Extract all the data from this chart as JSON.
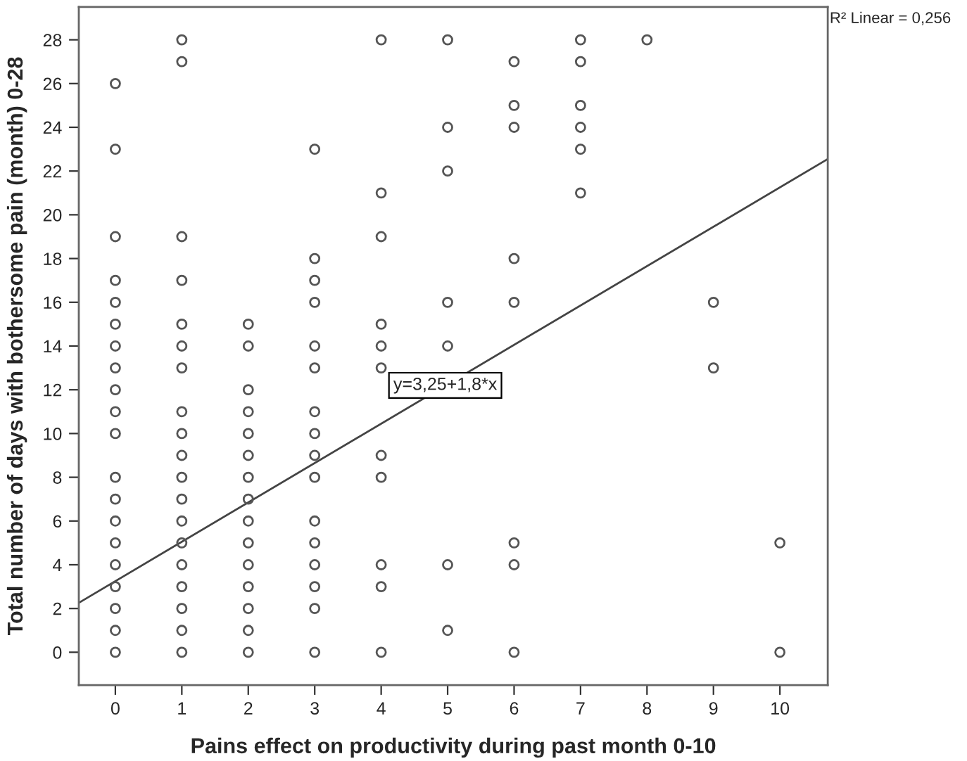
{
  "chart_data": {
    "type": "scatter",
    "xlabel": "Pains effect on productivity during past month 0-10",
    "ylabel": "Total number of days with bothersome pain (month) 0-28",
    "grid": false,
    "legend": false,
    "xlim": [
      -0.55,
      10.72
    ],
    "ylim": [
      -1.5,
      29.5
    ],
    "xticks": [
      0,
      1,
      2,
      3,
      4,
      5,
      6,
      7,
      8,
      9,
      10
    ],
    "yticks": [
      0,
      2,
      4,
      6,
      8,
      10,
      12,
      14,
      16,
      18,
      20,
      22,
      24,
      26,
      28
    ],
    "series": [
      {
        "color": "#555555",
        "marker": "circle",
        "x": [
          0,
          0,
          0,
          0,
          0,
          0,
          0,
          0,
          0,
          0,
          0,
          0,
          0,
          0,
          0,
          0,
          0,
          0,
          0,
          0,
          1,
          1,
          1,
          1,
          1,
          1,
          1,
          1,
          1,
          1,
          1,
          1,
          1,
          1,
          1,
          1,
          1,
          1,
          1,
          2,
          2,
          2,
          2,
          2,
          2,
          2,
          2,
          2,
          2,
          2,
          2,
          2,
          2,
          2,
          3,
          3,
          3,
          3,
          3,
          3,
          3,
          3,
          3,
          3,
          3,
          3,
          3,
          3,
          3,
          3,
          4,
          4,
          4,
          4,
          4,
          4,
          4,
          4,
          4,
          4,
          4,
          5,
          5,
          5,
          5,
          5,
          5,
          5,
          6,
          6,
          6,
          6,
          6,
          6,
          6,
          6,
          7,
          7,
          7,
          7,
          7,
          7,
          8,
          9,
          9,
          10,
          10
        ],
        "values": [
          26,
          23,
          19,
          17,
          16,
          15,
          14,
          13,
          12,
          11,
          10,
          8,
          7,
          6,
          5,
          4,
          3,
          2,
          1,
          0,
          28,
          27,
          19,
          17,
          15,
          14,
          13,
          11,
          10,
          9,
          8,
          7,
          6,
          5,
          4,
          3,
          2,
          1,
          0,
          15,
          14,
          12,
          11,
          10,
          9,
          8,
          7,
          6,
          5,
          4,
          3,
          2,
          1,
          0,
          23,
          18,
          17,
          16,
          14,
          13,
          11,
          10,
          9,
          8,
          6,
          5,
          4,
          3,
          2,
          0,
          28,
          21,
          19,
          15,
          14,
          13,
          9,
          8,
          4,
          3,
          0,
          28,
          24,
          22,
          16,
          14,
          4,
          1,
          27,
          25,
          24,
          18,
          16,
          5,
          4,
          0,
          28,
          27,
          25,
          24,
          23,
          21,
          28,
          16,
          13,
          5,
          0
        ]
      },
      {
        "type": "line",
        "color": "#444444",
        "x": [
          -0.55,
          10.72
        ],
        "values": [
          2.26,
          22.55
        ]
      }
    ],
    "annotations": [
      "y=3,25+1,8*x",
      "R² Linear = 0,256"
    ]
  }
}
